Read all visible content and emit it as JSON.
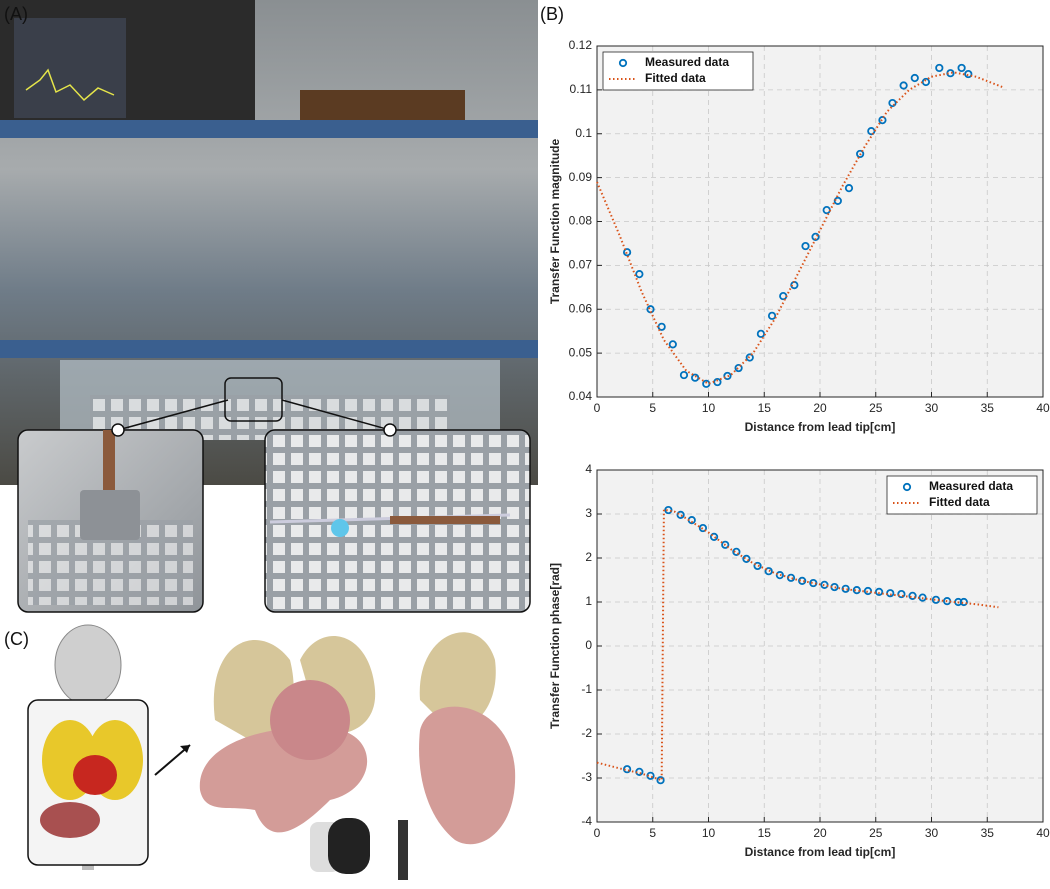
{
  "panel_labels": [
    "(A)",
    "(B)",
    "(C)"
  ],
  "chart_data": [
    {
      "type": "line",
      "xlabel": "Distance from lead tip[cm]",
      "ylabel": "Transfer Function magnitude",
      "xlim": [
        0,
        40
      ],
      "xticks": [
        0,
        5,
        10,
        15,
        20,
        25,
        30,
        35,
        40
      ],
      "ylim": [
        0.04,
        0.12
      ],
      "yticks": [
        0.04,
        0.05,
        0.06,
        0.07,
        0.08,
        0.09,
        0.1,
        0.11,
        0.12
      ],
      "grid": true,
      "legend": "upper left",
      "series": [
        {
          "name": "Measured data",
          "color": "#0072bd",
          "style": "markers",
          "x": [
            2.7,
            3.8,
            4.8,
            5.8,
            6.8,
            7.8,
            8.8,
            9.8,
            10.8,
            11.7,
            12.7,
            13.7,
            14.7,
            15.7,
            16.7,
            17.7,
            18.7,
            19.6,
            20.6,
            21.6,
            22.6,
            23.6,
            24.6,
            25.6,
            26.5,
            27.5,
            28.5,
            29.5,
            30.7,
            31.7,
            32.7,
            33.3
          ],
          "values": [
            0.073,
            0.068,
            0.06,
            0.056,
            0.052,
            0.045,
            0.0444,
            0.043,
            0.0434,
            0.0448,
            0.0466,
            0.049,
            0.0544,
            0.0585,
            0.063,
            0.0655,
            0.0744,
            0.0765,
            0.0826,
            0.0847,
            0.0876,
            0.0954,
            0.1006,
            0.1031,
            0.107,
            0.111,
            0.1127,
            0.1118,
            0.115,
            0.1138,
            0.115,
            0.1136
          ]
        },
        {
          "name": "Fitted data",
          "color": "#d95319",
          "style": "dotted",
          "x": [
            0,
            2,
            4,
            6,
            8,
            10,
            12,
            14,
            16,
            18,
            20,
            22,
            24,
            26,
            28,
            30,
            32,
            34,
            36,
            36.5
          ],
          "values": [
            0.089,
            0.077,
            0.064,
            0.053,
            0.046,
            0.043,
            0.045,
            0.05,
            0.058,
            0.068,
            0.078,
            0.088,
            0.097,
            0.105,
            0.11,
            0.113,
            0.114,
            0.113,
            0.111,
            0.1105
          ]
        }
      ]
    },
    {
      "type": "line",
      "xlabel": "Distance from lead tip[cm]",
      "ylabel": "Transfer Function phase[rad]",
      "xlim": [
        0,
        40
      ],
      "xticks": [
        0,
        5,
        10,
        15,
        20,
        25,
        30,
        35,
        40
      ],
      "ylim": [
        -4,
        4
      ],
      "yticks": [
        -4,
        -3,
        -2,
        -1,
        0,
        1,
        2,
        3,
        4
      ],
      "grid": true,
      "legend": "upper right",
      "series": [
        {
          "name": "Measured data",
          "color": "#0072bd",
          "style": "markers",
          "x": [
            2.7,
            3.8,
            4.8,
            5.7,
            6.4,
            7.5,
            8.5,
            9.5,
            10.5,
            11.5,
            12.5,
            13.4,
            14.4,
            15.4,
            16.4,
            17.4,
            18.4,
            19.4,
            20.4,
            21.3,
            22.3,
            23.3,
            24.3,
            25.3,
            26.3,
            27.3,
            28.3,
            29.2,
            30.4,
            31.4,
            32.4,
            32.9
          ],
          "values": [
            -2.8,
            -2.86,
            -2.95,
            -3.05,
            3.09,
            2.98,
            2.86,
            2.68,
            2.48,
            2.3,
            2.14,
            1.98,
            1.82,
            1.7,
            1.61,
            1.55,
            1.48,
            1.43,
            1.39,
            1.34,
            1.3,
            1.27,
            1.25,
            1.23,
            1.2,
            1.18,
            1.14,
            1.1,
            1.05,
            1.02,
            1.0,
            1.0
          ]
        },
        {
          "name": "Fitted data",
          "color": "#d95319",
          "style": "dotted",
          "x": [
            0,
            2,
            4,
            5.8,
            6.0,
            7,
            8,
            10,
            12,
            14,
            16,
            18,
            20,
            22,
            24,
            26,
            28,
            30,
            32,
            34,
            36
          ],
          "values": [
            -2.65,
            -2.78,
            -2.9,
            -3.05,
            3.1,
            3.05,
            2.9,
            2.58,
            2.2,
            1.88,
            1.65,
            1.5,
            1.4,
            1.3,
            1.24,
            1.18,
            1.12,
            1.06,
            1.0,
            0.95,
            0.88
          ]
        }
      ]
    }
  ]
}
